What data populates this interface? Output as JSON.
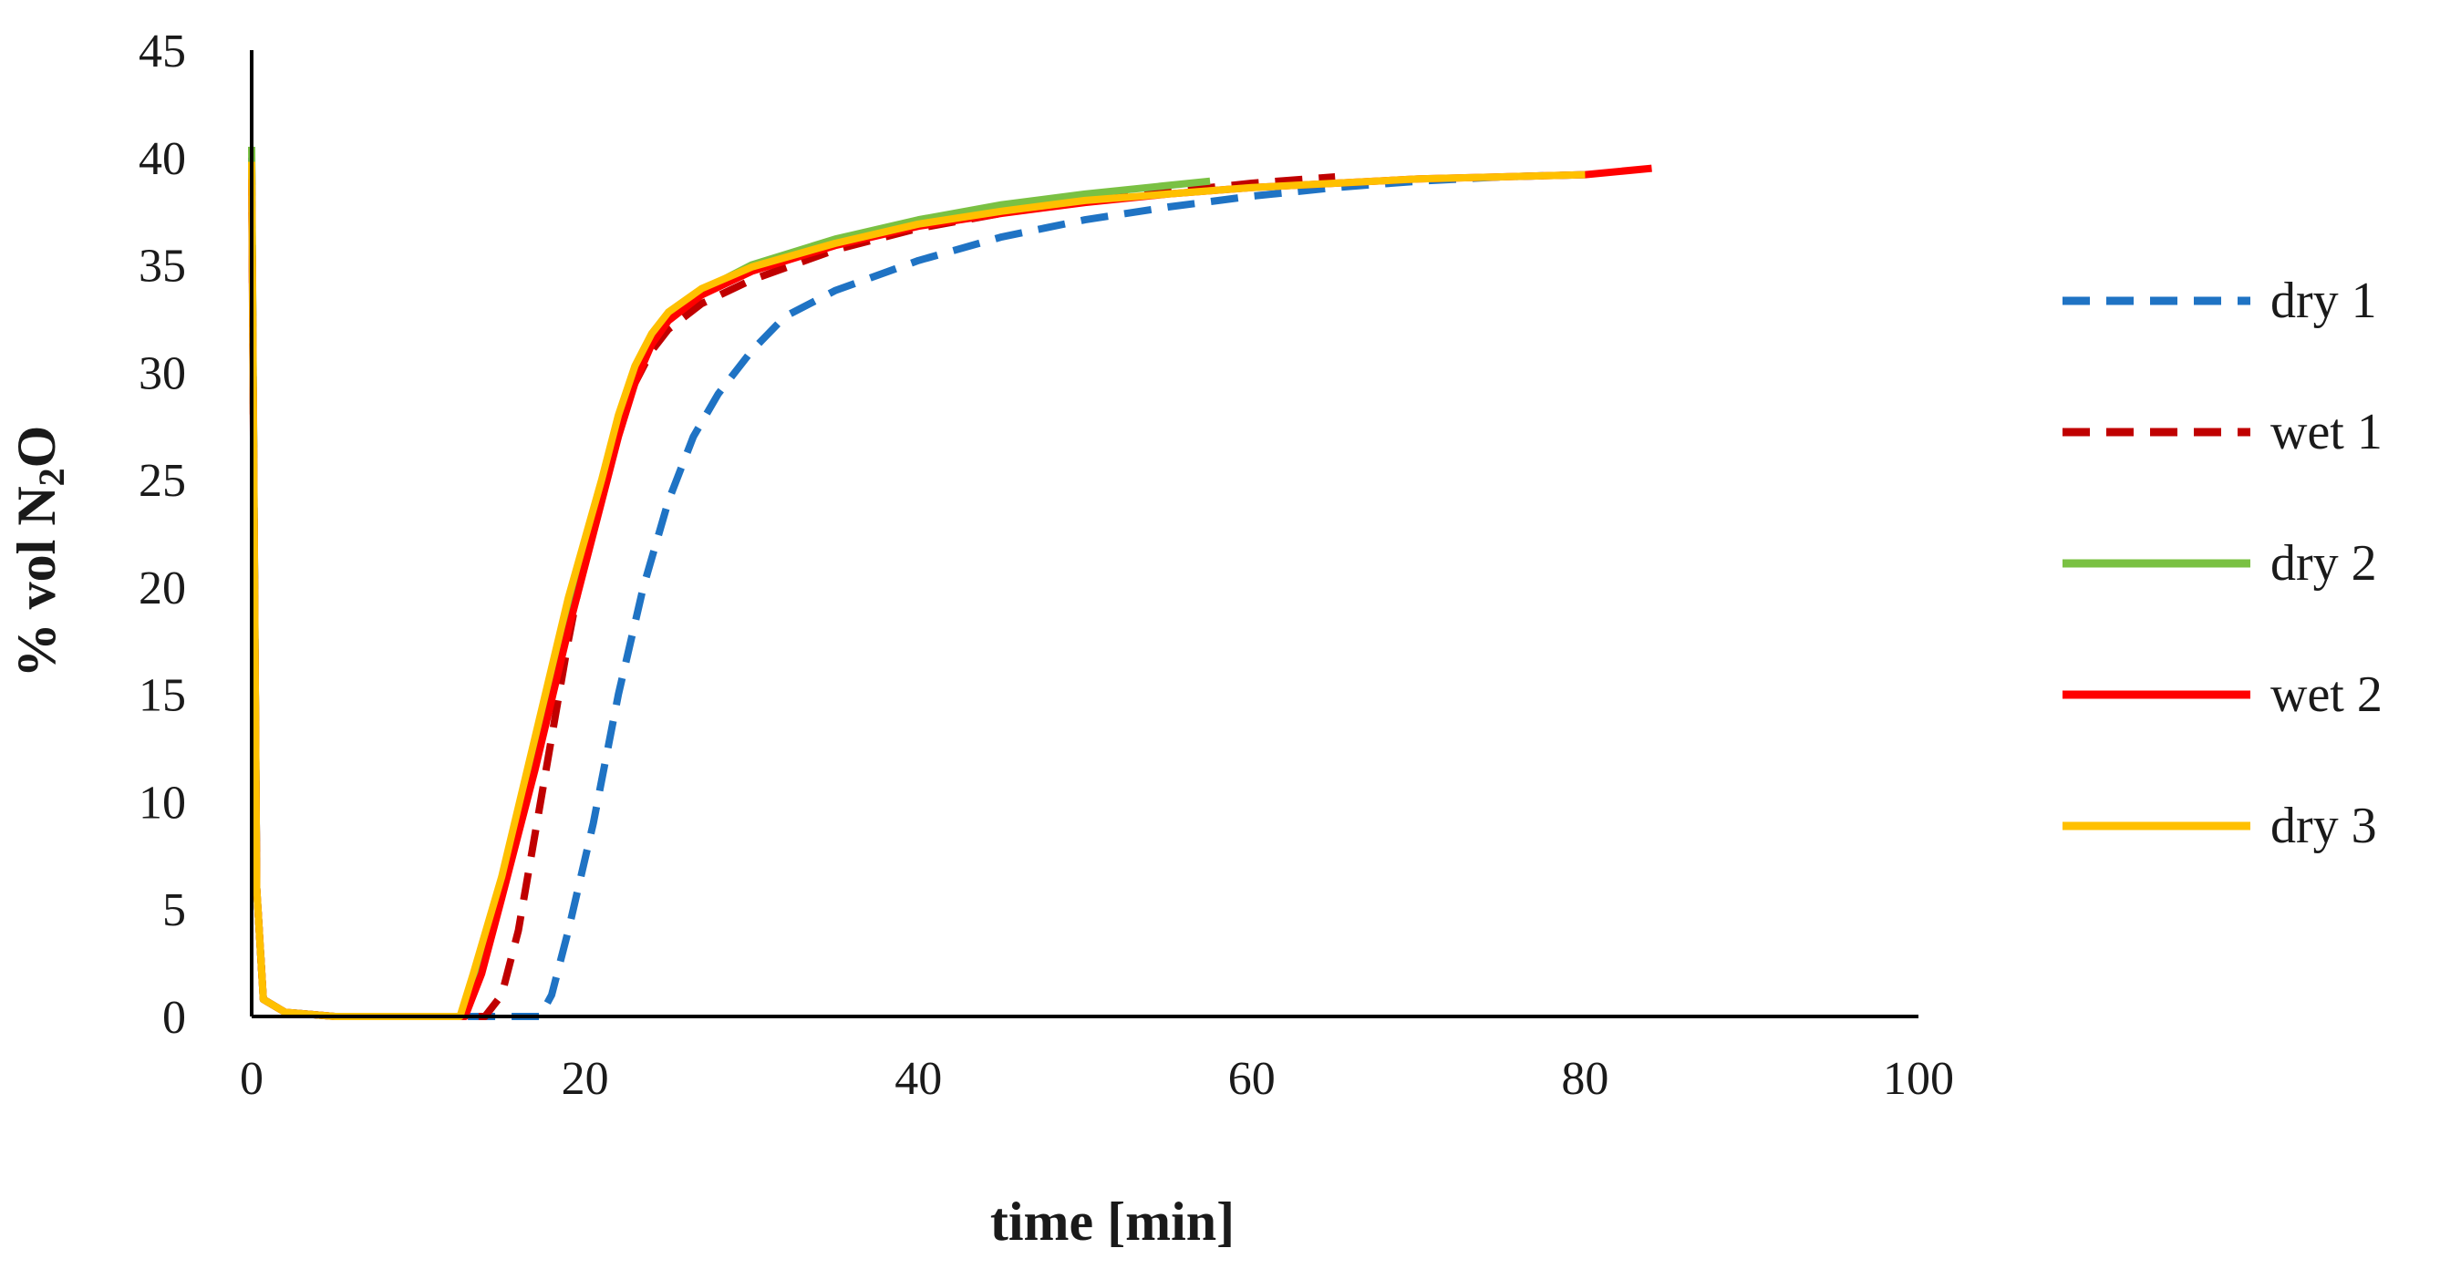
{
  "chart_data": {
    "type": "line",
    "title": "",
    "xlabel": "time [min]",
    "ylabel_parts": {
      "prefix": "% vol N",
      "subscript": "2",
      "suffix": "O"
    },
    "xlim": [
      0,
      100
    ],
    "ylim": [
      0,
      45
    ],
    "xticks": [
      0,
      20,
      40,
      60,
      80,
      100
    ],
    "yticks": [
      0,
      5,
      10,
      15,
      20,
      25,
      30,
      35,
      40,
      45
    ],
    "grid": false,
    "legend_position": "right",
    "series": [
      {
        "name": "dry 1",
        "color": "#1f73c4",
        "style": "dashed",
        "points": [
          [
            0,
            40
          ],
          [
            0.3,
            6
          ],
          [
            0.7,
            0.8
          ],
          [
            2,
            0.2
          ],
          [
            5,
            0
          ],
          [
            10,
            0
          ],
          [
            15,
            0
          ],
          [
            17.3,
            0
          ],
          [
            18,
            1
          ],
          [
            19,
            4
          ],
          [
            20.5,
            9
          ],
          [
            22,
            15
          ],
          [
            23.5,
            20
          ],
          [
            25,
            24
          ],
          [
            26.5,
            27
          ],
          [
            28,
            29
          ],
          [
            30,
            31
          ],
          [
            32,
            32.6
          ],
          [
            35,
            33.8
          ],
          [
            40,
            35.2
          ],
          [
            45,
            36.3
          ],
          [
            50,
            37.1
          ],
          [
            55,
            37.7
          ],
          [
            60,
            38.2
          ],
          [
            65,
            38.6
          ],
          [
            70,
            38.9
          ],
          [
            75,
            39.1
          ],
          [
            80,
            39.2
          ]
        ]
      },
      {
        "name": "wet 1",
        "color": "#c00000",
        "style": "dashed",
        "points": [
          [
            0,
            39.5
          ],
          [
            0.3,
            6
          ],
          [
            0.7,
            0.8
          ],
          [
            2,
            0.2
          ],
          [
            5,
            0
          ],
          [
            10,
            0
          ],
          [
            14,
            0
          ],
          [
            15,
            1
          ],
          [
            16,
            4
          ],
          [
            17,
            8.5
          ],
          [
            18,
            13
          ],
          [
            19,
            17.5
          ],
          [
            20,
            21.5
          ],
          [
            21,
            25
          ],
          [
            22,
            27.5
          ],
          [
            23,
            29.5
          ],
          [
            24,
            31
          ],
          [
            25,
            32
          ],
          [
            27,
            33.2
          ],
          [
            30,
            34.3
          ],
          [
            35,
            35.7
          ],
          [
            40,
            36.7
          ],
          [
            45,
            37.4
          ],
          [
            50,
            38
          ],
          [
            55,
            38.4
          ],
          [
            60,
            38.8
          ],
          [
            65,
            39.1
          ]
        ]
      },
      {
        "name": "dry 2",
        "color": "#7ac143",
        "style": "solid",
        "points": [
          [
            0,
            40.5
          ],
          [
            0.3,
            6
          ],
          [
            0.7,
            0.8
          ],
          [
            2,
            0.2
          ],
          [
            5,
            0
          ],
          [
            10,
            0
          ],
          [
            12.5,
            0
          ],
          [
            13.5,
            2
          ],
          [
            15,
            6
          ],
          [
            17,
            12
          ],
          [
            19,
            18.5
          ],
          [
            21,
            24.5
          ],
          [
            22,
            27.5
          ],
          [
            23,
            30
          ],
          [
            24,
            31.5
          ],
          [
            25,
            32.6
          ],
          [
            27,
            33.8
          ],
          [
            30,
            35
          ],
          [
            35,
            36.2
          ],
          [
            40,
            37.1
          ],
          [
            45,
            37.8
          ],
          [
            50,
            38.3
          ],
          [
            55,
            38.7
          ],
          [
            57.5,
            38.9
          ]
        ]
      },
      {
        "name": "wet 2",
        "color": "#ff0000",
        "style": "solid",
        "points": [
          [
            0,
            39
          ],
          [
            0.3,
            6
          ],
          [
            0.7,
            0.8
          ],
          [
            2,
            0.2
          ],
          [
            5,
            0
          ],
          [
            10,
            0
          ],
          [
            12.8,
            0
          ],
          [
            13.8,
            2
          ],
          [
            15,
            5.5
          ],
          [
            17,
            11.5
          ],
          [
            19,
            18
          ],
          [
            21,
            24
          ],
          [
            22,
            27
          ],
          [
            23,
            29.5
          ],
          [
            24,
            31.3
          ],
          [
            25,
            32.4
          ],
          [
            27,
            33.6
          ],
          [
            30,
            34.7
          ],
          [
            35,
            35.9
          ],
          [
            40,
            36.8
          ],
          [
            45,
            37.4
          ],
          [
            50,
            37.9
          ],
          [
            55,
            38.3
          ],
          [
            60,
            38.6
          ],
          [
            65,
            38.8
          ],
          [
            70,
            39
          ],
          [
            75,
            39.1
          ],
          [
            80,
            39.2
          ],
          [
            84,
            39.5
          ]
        ]
      },
      {
        "name": "dry 3",
        "color": "#ffc000",
        "style": "solid",
        "points": [
          [
            0,
            39.8
          ],
          [
            0.3,
            6
          ],
          [
            0.7,
            0.8
          ],
          [
            2,
            0.2
          ],
          [
            5,
            0
          ],
          [
            10,
            0
          ],
          [
            12.5,
            0
          ],
          [
            13.3,
            2
          ],
          [
            15,
            6.5
          ],
          [
            17,
            13
          ],
          [
            19,
            19.5
          ],
          [
            21,
            25
          ],
          [
            22,
            28
          ],
          [
            23,
            30.3
          ],
          [
            24,
            31.8
          ],
          [
            25,
            32.8
          ],
          [
            27,
            33.9
          ],
          [
            30,
            34.9
          ],
          [
            35,
            36
          ],
          [
            40,
            36.9
          ],
          [
            45,
            37.5
          ],
          [
            50,
            38
          ],
          [
            55,
            38.3
          ],
          [
            60,
            38.6
          ],
          [
            65,
            38.8
          ],
          [
            70,
            39
          ],
          [
            75,
            39.1
          ],
          [
            80,
            39.2
          ]
        ]
      }
    ]
  }
}
